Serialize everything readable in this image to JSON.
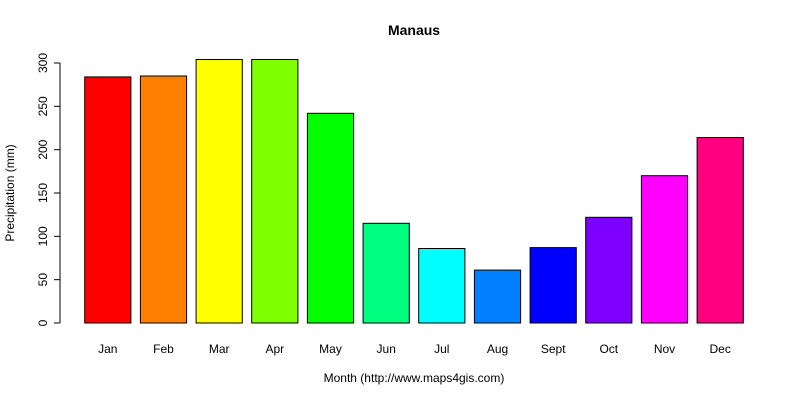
{
  "chart_data": {
    "type": "bar",
    "title": "Manaus",
    "xlabel": "Month (http://www.maps4gis.com)",
    "ylabel": "Precipitation (mm)",
    "ylim": [
      0,
      300
    ],
    "yticks": [
      "0",
      "50",
      "100",
      "150",
      "200",
      "250",
      "300"
    ],
    "categories": [
      "Jan",
      "Feb",
      "Mar",
      "Apr",
      "May",
      "Jun",
      "Jul",
      "Aug",
      "Sept",
      "Oct",
      "Nov",
      "Dec"
    ],
    "values": [
      284,
      285,
      304,
      304,
      242,
      115,
      86,
      61,
      87,
      122,
      170,
      214
    ],
    "colors": [
      "#FF0000",
      "#FF8000",
      "#FFFF00",
      "#80FF00",
      "#00FF00",
      "#00FF80",
      "#00FFFF",
      "#0080FF",
      "#0000FF",
      "#8000FF",
      "#FF00FF",
      "#FF0080"
    ],
    "grid": false,
    "legend": "none"
  }
}
